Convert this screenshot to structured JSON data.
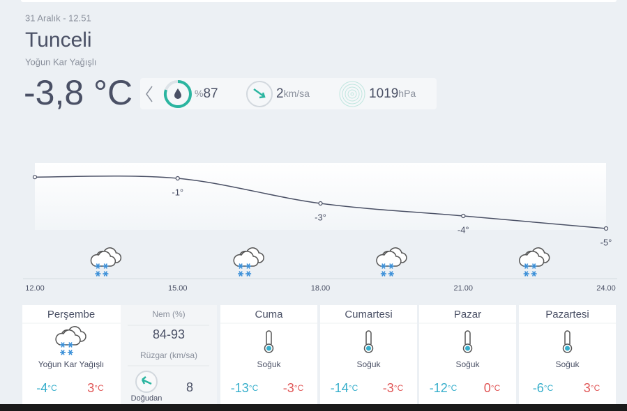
{
  "header": {
    "date": "31 Aralık - 12.51",
    "city": "Tunceli",
    "condition": "Yoğun Kar Yağışlı"
  },
  "current": {
    "temperature": "-3,8 °C",
    "humidity_unit": "%",
    "humidity": 87,
    "wind": 2,
    "wind_unit": "km/sa",
    "pressure": 1019,
    "pressure_unit": "hPa"
  },
  "chart_data": {
    "type": "line",
    "categories": [
      "12.00",
      "15.00",
      "18.00",
      "21.00",
      "24.00"
    ],
    "values": [
      -0.9,
      -1,
      -3,
      -4,
      -5
    ],
    "value_labels": [
      null,
      "-1°",
      "-3°",
      "-4°",
      "-5°"
    ],
    "ylim": [
      -9,
      0
    ],
    "color": "#4a5065"
  },
  "units": {
    "temp": "°C"
  },
  "today": {
    "day": "Perşembe",
    "condition": "Yoğun Kar Yağışlı",
    "min": -4,
    "max": 3,
    "humidity_label": "Nem (%)",
    "humidity_range": "84-93",
    "wind_label": "Rüzgar (km/sa)",
    "wind_speed": 8,
    "wind_direction": "Doğudan"
  },
  "forecast": [
    {
      "day": "Cuma",
      "condition": "Soğuk",
      "min": -13,
      "max": -3
    },
    {
      "day": "Cumartesi",
      "condition": "Soğuk",
      "min": -14,
      "max": -3
    },
    {
      "day": "Pazar",
      "condition": "Soğuk",
      "min": -12,
      "max": 0
    },
    {
      "day": "Pazartesi",
      "condition": "Soğuk",
      "min": -6,
      "max": 3
    }
  ]
}
